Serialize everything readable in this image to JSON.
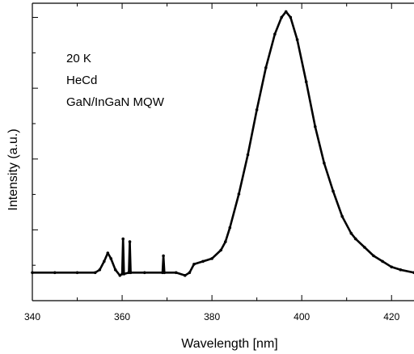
{
  "chart_data": {
    "type": "line",
    "xlabel": "Wavelength [nm]",
    "ylabel": "Intensity (a.u.)",
    "xlim": [
      340,
      425
    ],
    "ylim": [
      0,
      1.06
    ],
    "x_ticks": [
      340,
      360,
      380,
      400,
      420
    ],
    "x_minor_ticks": [
      350,
      370,
      390,
      410
    ],
    "y_ticks_count": 8,
    "grid": false,
    "annotations": [
      "20 K",
      "HeCd",
      "GaN/InGaN MQW"
    ],
    "series": [
      {
        "points": [
          [
            340,
            0.1
          ],
          [
            345,
            0.1
          ],
          [
            350,
            0.1
          ],
          [
            354,
            0.1
          ],
          [
            355,
            0.11
          ],
          [
            356,
            0.14
          ],
          [
            356.8,
            0.17
          ],
          [
            357.5,
            0.15
          ],
          [
            358.5,
            0.11
          ],
          [
            359.5,
            0.09
          ],
          [
            360,
            0.095
          ],
          [
            360.2,
            0.22
          ],
          [
            360.4,
            0.095
          ],
          [
            361.5,
            0.1
          ],
          [
            361.7,
            0.21
          ],
          [
            361.9,
            0.1
          ],
          [
            365,
            0.1
          ],
          [
            369,
            0.1
          ],
          [
            369.2,
            0.16
          ],
          [
            369.4,
            0.1
          ],
          [
            372,
            0.1
          ],
          [
            374,
            0.09
          ],
          [
            375,
            0.1
          ],
          [
            376,
            0.13
          ],
          [
            378,
            0.14
          ],
          [
            380,
            0.15
          ],
          [
            382,
            0.18
          ],
          [
            383,
            0.21
          ],
          [
            384,
            0.26
          ],
          [
            386,
            0.38
          ],
          [
            388,
            0.52
          ],
          [
            390,
            0.68
          ],
          [
            392,
            0.83
          ],
          [
            394,
            0.95
          ],
          [
            395.5,
            1.01
          ],
          [
            396.5,
            1.03
          ],
          [
            397.5,
            1.01
          ],
          [
            399,
            0.93
          ],
          [
            401,
            0.78
          ],
          [
            403,
            0.62
          ],
          [
            405,
            0.49
          ],
          [
            407,
            0.39
          ],
          [
            409,
            0.3
          ],
          [
            411,
            0.24
          ],
          [
            412,
            0.22
          ],
          [
            414,
            0.19
          ],
          [
            416,
            0.16
          ],
          [
            418,
            0.14
          ],
          [
            420,
            0.12
          ],
          [
            422,
            0.11
          ],
          [
            425,
            0.1
          ]
        ]
      }
    ]
  }
}
